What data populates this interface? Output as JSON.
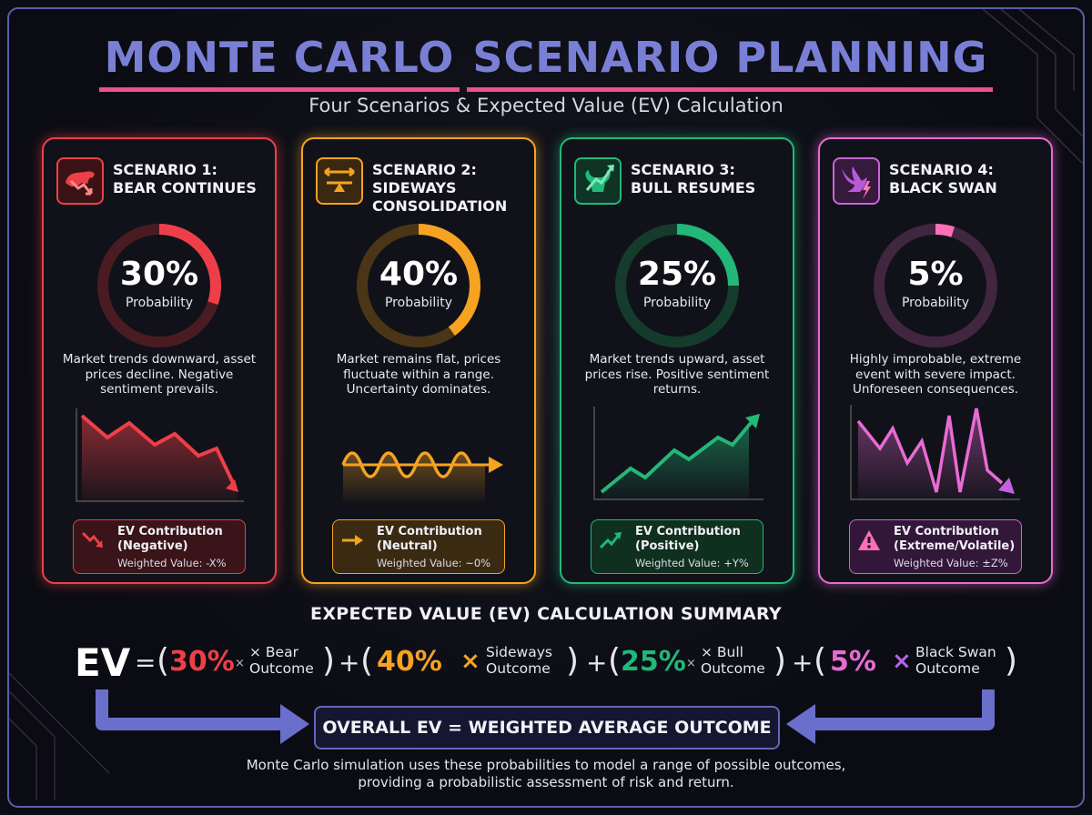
{
  "title": {
    "part1": "MONTE CARLO",
    "part2": "SCENARIO PLANNING"
  },
  "subtitle": "Four Scenarios & Expected Value (EV) Calculation",
  "colors": {
    "bear": "#ee3f48",
    "sideways": "#f5a321",
    "bull": "#22b877",
    "swan": "#e86bd4",
    "accent": "#6a6fcc"
  },
  "scenarios": [
    {
      "heading1": "SCENARIO 1:",
      "heading2": "BEAR CONTINUES",
      "icon": "bear-icon",
      "percent": "30%",
      "probability": 0.3,
      "prob_label": "Probability",
      "description": "Market trends downward, asset prices decline. Negative sentiment prevails.",
      "ev_title": "EV Contribution (Negative)",
      "ev_value": "Weighted Value: -X%"
    },
    {
      "heading1": "SCENARIO 2:",
      "heading2": "SIDEWAYS CONSOLIDATION",
      "icon": "scale-arrows-icon",
      "percent": "40%",
      "probability": 0.4,
      "prob_label": "Probability",
      "description": "Market remains flat, prices fluctuate within a range. Uncertainty dominates.",
      "ev_title": "EV Contribution (Neutral)",
      "ev_value": "Weighted Value: ~0%"
    },
    {
      "heading1": "SCENARIO 3:",
      "heading2": "BULL RESUMES",
      "icon": "bull-icon",
      "percent": "25%",
      "probability": 0.25,
      "prob_label": "Probability",
      "description": "Market trends upward, asset prices rise. Positive sentiment returns.",
      "ev_title": "EV Contribution (Positive)",
      "ev_value": "Weighted Value: +Y%"
    },
    {
      "heading1": "SCENARIO 4:",
      "heading2": "BLACK SWAN",
      "icon": "black-swan-icon",
      "percent": "5%",
      "probability": 0.05,
      "prob_label": "Probability",
      "description": "Highly improbable, extreme event with severe impact. Unforeseen consequences.",
      "ev_title": "EV Contribution (Extreme/Volatile)",
      "ev_value": "Weighted Value: ±Z%"
    }
  ],
  "summary_title": "EXPECTED VALUE (EV) CALCULATION SUMMARY",
  "formula": {
    "ev": "EV",
    "equals": "=",
    "plus": "+",
    "open": "(",
    "close": ")",
    "terms": [
      {
        "percent": "30%",
        "times": "×",
        "label1": "× Bear",
        "label2": "Outcome"
      },
      {
        "percent": "40%",
        "times": "×",
        "label1": "Sideways",
        "label2": "Outcome"
      },
      {
        "percent": "25%",
        "times": "×",
        "label1": "× Bull",
        "label2": "Outcome"
      },
      {
        "percent": "5%",
        "times": "×",
        "label1": "Black Swan",
        "label2": "Outcome"
      }
    ]
  },
  "overall": "OVERALL EV = WEIGHTED AVERAGE OUTCOME",
  "footer": {
    "line1": "Monte Carlo simulation uses these probabilities to model a range of possible outcomes,",
    "line2": "providing a probabilistic assessment of risk and return."
  }
}
